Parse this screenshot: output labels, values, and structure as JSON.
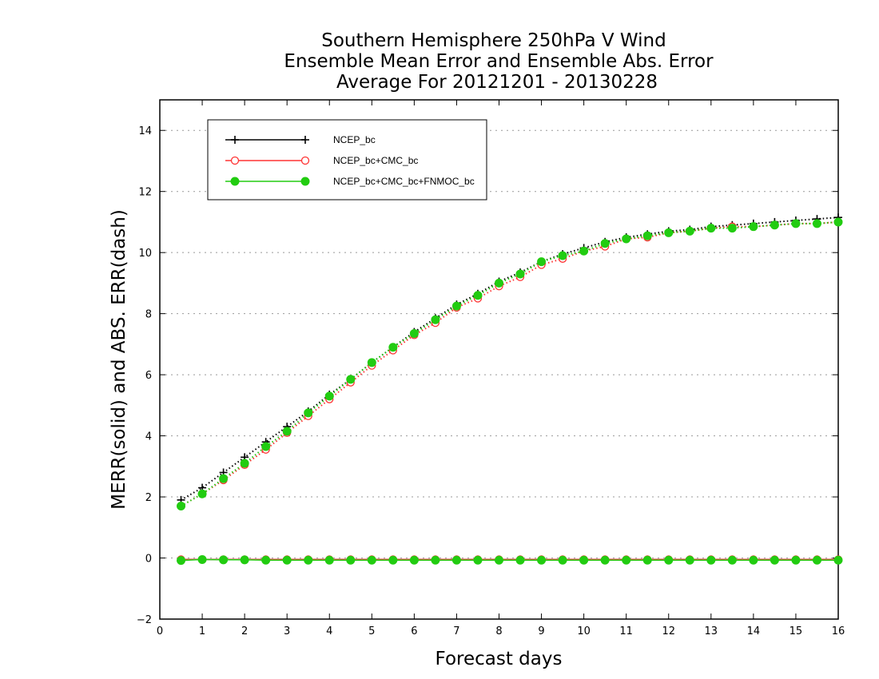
{
  "chart_data": {
    "type": "line",
    "title": [
      "Southern Hemisphere 250hPa V Wind",
      "Ensemble Mean Error and Ensemble Abs. Error",
      "Average For 20121201 - 20130228"
    ],
    "xlabel": "Forecast days",
    "ylabel": "MERR(solid) and ABS. ERR(dash)",
    "xlim": [
      0,
      16
    ],
    "ylim": [
      -2,
      15
    ],
    "xticks": [
      0,
      1,
      2,
      3,
      4,
      5,
      6,
      7,
      8,
      9,
      10,
      11,
      12,
      13,
      14,
      15,
      16
    ],
    "yticks": [
      -2,
      0,
      2,
      4,
      6,
      8,
      10,
      12,
      14
    ],
    "grid": "horizontal dotted at y ticks",
    "legend_position": "top-left",
    "x": [
      0.5,
      1,
      1.5,
      2,
      2.5,
      3,
      3.5,
      4,
      4.5,
      5,
      5.5,
      6,
      6.5,
      7,
      7.5,
      8,
      8.5,
      9,
      9.5,
      10,
      10.5,
      11,
      11.5,
      12,
      12.5,
      13,
      13.5,
      14,
      14.5,
      15,
      15.5,
      16
    ],
    "series": [
      {
        "name": "NCEP_bc",
        "color": "#000000",
        "marker": "plus",
        "mean_error": [
          -0.05,
          -0.05,
          -0.05,
          -0.05,
          -0.05,
          -0.05,
          -0.05,
          -0.05,
          -0.05,
          -0.05,
          -0.05,
          -0.05,
          -0.05,
          -0.05,
          -0.05,
          -0.05,
          -0.05,
          -0.05,
          -0.05,
          -0.05,
          -0.05,
          -0.05,
          -0.05,
          -0.05,
          -0.05,
          -0.05,
          -0.05,
          -0.05,
          -0.05,
          -0.05,
          -0.05,
          -0.05
        ],
        "abs_error": [
          1.9,
          2.3,
          2.8,
          3.3,
          3.8,
          4.3,
          4.8,
          5.35,
          5.85,
          6.4,
          6.9,
          7.4,
          7.85,
          8.3,
          8.65,
          9.05,
          9.35,
          9.7,
          9.95,
          10.15,
          10.35,
          10.5,
          10.6,
          10.7,
          10.75,
          10.85,
          10.9,
          10.95,
          11.0,
          11.05,
          11.1,
          11.15
        ]
      },
      {
        "name": "NCEP_bc+CMC_bc",
        "color": "#ff3333",
        "marker": "open-circle",
        "mean_error": [
          -0.05,
          -0.05,
          -0.05,
          -0.05,
          -0.05,
          -0.05,
          -0.05,
          -0.05,
          -0.05,
          -0.05,
          -0.05,
          -0.05,
          -0.05,
          -0.05,
          -0.05,
          -0.05,
          -0.05,
          -0.05,
          -0.05,
          -0.05,
          -0.05,
          -0.05,
          -0.05,
          -0.05,
          -0.05,
          -0.05,
          -0.05,
          -0.05,
          -0.05,
          -0.05,
          -0.05,
          -0.05
        ],
        "abs_error": [
          1.7,
          2.1,
          2.55,
          3.05,
          3.55,
          4.1,
          4.65,
          5.2,
          5.75,
          6.3,
          6.8,
          7.3,
          7.7,
          8.2,
          8.5,
          8.9,
          9.2,
          9.6,
          9.8,
          10.05,
          10.2,
          10.45,
          10.5,
          10.65,
          10.7,
          10.8,
          10.85,
          10.85,
          10.9,
          10.95,
          10.95,
          11.0
        ]
      },
      {
        "name": "NCEP_bc+CMC_bc+FNMOC_bc",
        "color": "#22cc11",
        "marker": "filled-circle",
        "mean_error": [
          -0.08,
          -0.05,
          -0.06,
          -0.06,
          -0.07,
          -0.07,
          -0.07,
          -0.07,
          -0.07,
          -0.07,
          -0.07,
          -0.07,
          -0.07,
          -0.07,
          -0.07,
          -0.07,
          -0.07,
          -0.07,
          -0.07,
          -0.07,
          -0.07,
          -0.07,
          -0.07,
          -0.07,
          -0.07,
          -0.07,
          -0.07,
          -0.07,
          -0.07,
          -0.07,
          -0.07,
          -0.07
        ],
        "abs_error": [
          1.7,
          2.1,
          2.6,
          3.1,
          3.65,
          4.15,
          4.75,
          5.3,
          5.85,
          6.4,
          6.9,
          7.35,
          7.8,
          8.25,
          8.6,
          9.0,
          9.3,
          9.7,
          9.9,
          10.05,
          10.3,
          10.45,
          10.55,
          10.65,
          10.7,
          10.8,
          10.8,
          10.85,
          10.9,
          10.95,
          10.95,
          11.0
        ]
      }
    ]
  }
}
